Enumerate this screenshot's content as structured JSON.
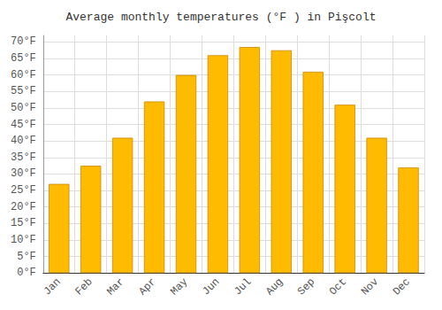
{
  "chart_data": {
    "type": "bar",
    "title": "Average monthly temperatures (°F ) in Pişcolt",
    "categories": [
      "Jan",
      "Feb",
      "Mar",
      "Apr",
      "May",
      "Jun",
      "Jul",
      "Aug",
      "Sep",
      "Oct",
      "Nov",
      "Dec"
    ],
    "values": [
      27,
      32.5,
      41,
      52,
      60,
      66,
      68.5,
      67.5,
      61,
      51,
      41,
      32
    ],
    "color": "#FFBB00",
    "ylim": [
      0,
      72
    ],
    "yticks": [
      {
        "value": 0,
        "label": "0°F"
      },
      {
        "value": 5,
        "label": "5°F"
      },
      {
        "value": 10,
        "label": "10°F"
      },
      {
        "value": 15,
        "label": "15°F"
      },
      {
        "value": 20,
        "label": "20°F"
      },
      {
        "value": 25,
        "label": "25°F"
      },
      {
        "value": 30,
        "label": "30°F"
      },
      {
        "value": 35,
        "label": "35°F"
      },
      {
        "value": 40,
        "label": "40°F"
      },
      {
        "value": 45,
        "label": "45°F"
      },
      {
        "value": 50,
        "label": "50°F"
      },
      {
        "value": 55,
        "label": "55°F"
      },
      {
        "value": 60,
        "label": "60°F"
      },
      {
        "value": 65,
        "label": "65°F"
      },
      {
        "value": 70,
        "label": "70°F"
      }
    ],
    "grid": true
  }
}
